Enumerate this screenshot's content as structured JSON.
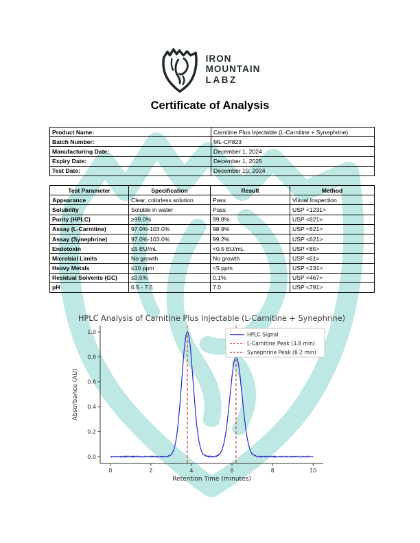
{
  "brand": {
    "line1": "IRON",
    "line2": "MOUNTAIN",
    "line3": "LABZ",
    "logo_color": "#1e2a26",
    "watermark_color": "#b2e4df"
  },
  "title": "Certificate of Analysis",
  "product_info": {
    "rows": [
      {
        "label": "Product Name:",
        "value": "Carnitine Plus Injectable (L-Carnitine + Synephrine)"
      },
      {
        "label": "Batch Number:",
        "value": "ML-CP823"
      },
      {
        "label": "Manufacturing Date:",
        "value": "December 1, 2024"
      },
      {
        "label": "Expiry Date:",
        "value": "December 1, 2025"
      },
      {
        "label": "Test Date:",
        "value": "December 10, 2024"
      }
    ]
  },
  "results_table": {
    "headers": [
      "Test Parameter",
      "Specification",
      "Result",
      "Method"
    ],
    "rows": [
      [
        "Appearance",
        "Clear, colorless solution",
        "Pass",
        "Visual Inspection"
      ],
      [
        "Solubility",
        "Soluble in water",
        "Pass",
        "USP <1231>"
      ],
      [
        "Purity (HPLC)",
        "≥99.0%",
        "99.8%",
        "USP <621>"
      ],
      [
        "Assay (L-Carnitine)",
        "97.0%-103.0%",
        "98.9%",
        "USP <621>"
      ],
      [
        "Assay (Synephrine)",
        "97.0%-103.0%",
        "99.2%",
        "USP <621>"
      ],
      [
        "Endotoxin",
        "≤5 EU/mL",
        "<0.5 EU/mL",
        "USP <85>"
      ],
      [
        "Microbial Limits",
        "No growth",
        "No growth",
        "USP <61>"
      ],
      [
        "Heavy Metals",
        "≤10 ppm",
        "<5 ppm",
        "USP <231>"
      ],
      [
        "Residual Solvents (GC)",
        "≤0.5%",
        "0.1%",
        "USP <467>"
      ],
      [
        "pH",
        "6.5 - 7.5",
        "7.0",
        "USP <791>"
      ]
    ]
  },
  "chart_data": {
    "type": "line",
    "title": "HPLC Analysis of Carnitine Plus Injectable (L-Carnitine + Synephrine)",
    "xlabel": "Retention Time (minutes)",
    "ylabel": "Absorbance (AU)",
    "xlim": [
      -0.5,
      10.5
    ],
    "ylim": [
      -0.055,
      1.05
    ],
    "xticks": [
      0,
      2,
      4,
      6,
      8,
      10
    ],
    "yticks": [
      0.0,
      0.2,
      0.4,
      0.6,
      0.8,
      1.0
    ],
    "grid": false,
    "series": [
      {
        "name": "HPLC Signal",
        "color": "#2626cf",
        "style": "solid",
        "noise": 0.004,
        "peaks": [
          {
            "center": 3.8,
            "amplitude": 1.0,
            "sigma": 0.28
          },
          {
            "center": 6.2,
            "amplitude": 0.8,
            "sigma": 0.3
          }
        ]
      }
    ],
    "markers": [
      {
        "name": "L-Carnitine Peak (3.8 min)",
        "x": 3.8,
        "color": "#d24a43",
        "style": "dashed"
      },
      {
        "name": "Synephrine Peak (6.2 min)",
        "x": 6.2,
        "color": "#d24a43",
        "style": "dashed"
      }
    ],
    "legend": [
      "HPLC Signal",
      "L-Carnitine Peak (3.8 min)",
      "Synephrine Peak (6.2 min)"
    ],
    "legend_position": "upper right",
    "title_color": "#3a3a3a"
  }
}
